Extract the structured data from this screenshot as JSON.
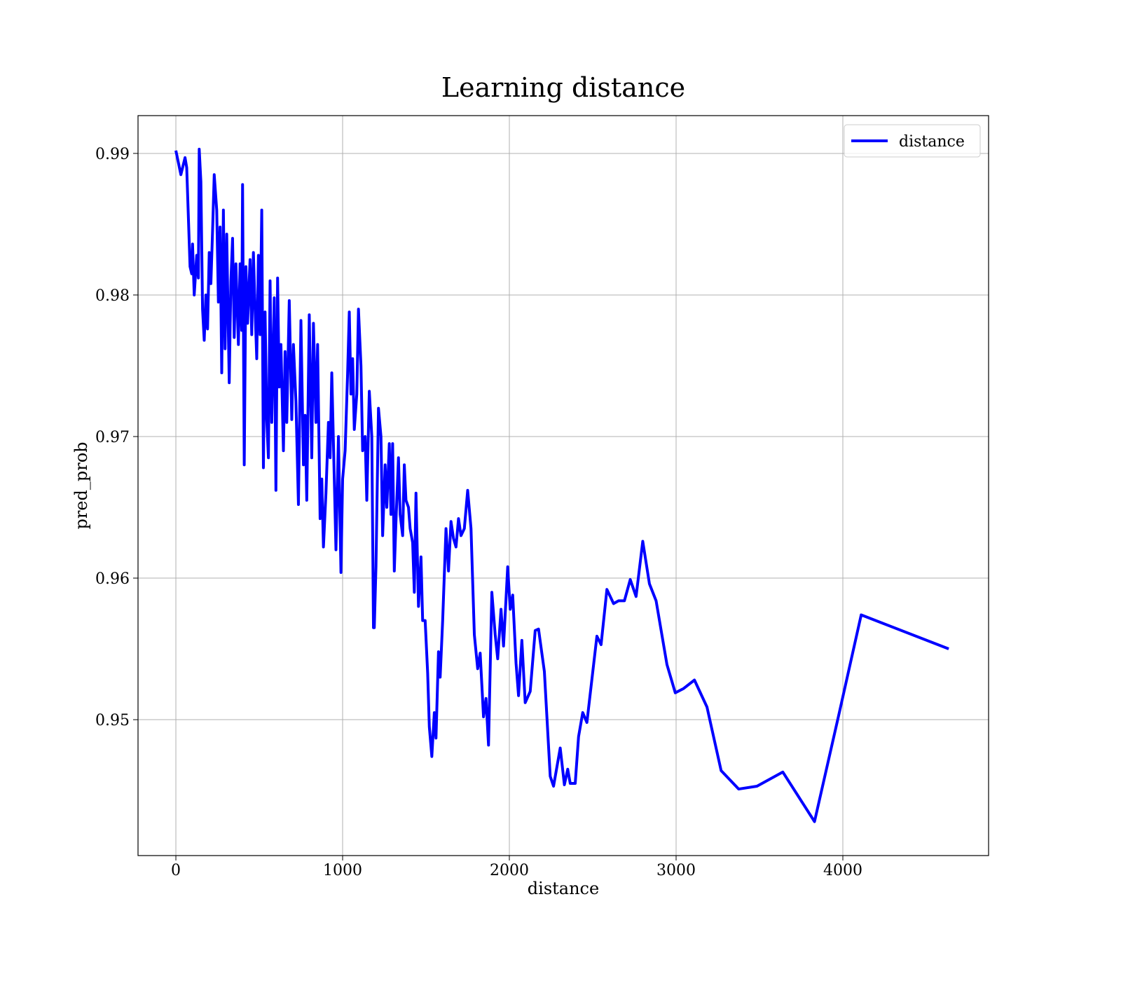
{
  "chart_data": {
    "type": "line",
    "title": "Learning distance",
    "xlabel": "distance",
    "ylabel": "pred_prob",
    "xlim": [
      -227,
      4874
    ],
    "ylim": [
      0.9404,
      0.99267
    ],
    "xticks": [
      0,
      1000,
      2000,
      3000,
      4000
    ],
    "yticks": [
      0.95,
      0.96,
      0.97,
      0.98,
      0.99
    ],
    "grid": true,
    "legend": "upper right",
    "x": [
      0,
      30,
      55,
      65,
      85,
      95,
      100,
      110,
      125,
      135,
      140,
      150,
      160,
      170,
      180,
      190,
      200,
      210,
      220,
      230,
      245,
      255,
      265,
      275,
      285,
      295,
      305,
      320,
      330,
      340,
      350,
      360,
      375,
      385,
      395,
      400,
      410,
      420,
      430,
      445,
      455,
      465,
      475,
      485,
      495,
      505,
      515,
      525,
      535,
      545,
      555,
      565,
      575,
      590,
      600,
      610,
      620,
      630,
      645,
      655,
      665,
      680,
      695,
      705,
      720,
      735,
      750,
      765,
      775,
      785,
      800,
      815,
      825,
      840,
      850,
      865,
      875,
      885,
      900,
      915,
      925,
      935,
      950,
      960,
      975,
      990,
      1000,
      1015,
      1030,
      1040,
      1050,
      1060,
      1070,
      1085,
      1095,
      1110,
      1120,
      1135,
      1145,
      1160,
      1175,
      1185,
      1190,
      1200,
      1215,
      1230,
      1240,
      1255,
      1265,
      1280,
      1290,
      1300,
      1310,
      1320,
      1335,
      1345,
      1360,
      1370,
      1380,
      1395,
      1405,
      1420,
      1430,
      1440,
      1455,
      1470,
      1480,
      1495,
      1510,
      1520,
      1535,
      1550,
      1560,
      1575,
      1585,
      1600,
      1620,
      1635,
      1650,
      1665,
      1680,
      1695,
      1710,
      1730,
      1750,
      1770,
      1790,
      1810,
      1825,
      1845,
      1860,
      1875,
      1895,
      1915,
      1930,
      1950,
      1965,
      1990,
      2005,
      2020,
      2040,
      2055,
      2075,
      2095,
      2125,
      2155,
      2175,
      2210,
      2245,
      2265,
      2305,
      2330,
      2350,
      2365,
      2395,
      2415,
      2440,
      2465,
      2525,
      2550,
      2585,
      2625,
      2655,
      2690,
      2725,
      2760,
      2800,
      2840,
      2880,
      2945,
      2995,
      3045,
      3110,
      3185,
      3270,
      3375,
      3485,
      3640,
      3830,
      3975,
      4110,
      4635
    ],
    "series": [
      {
        "name": "distance",
        "color": "#0000ff",
        "values": [
          0.9902,
          0.9885,
          0.9897,
          0.989,
          0.982,
          0.9815,
          0.9836,
          0.98,
          0.9828,
          0.9812,
          0.9903,
          0.988,
          0.979,
          0.9768,
          0.98,
          0.9776,
          0.983,
          0.9808,
          0.9845,
          0.9885,
          0.986,
          0.9795,
          0.9848,
          0.9745,
          0.986,
          0.9762,
          0.9843,
          0.9738,
          0.981,
          0.984,
          0.977,
          0.9822,
          0.9765,
          0.9822,
          0.9775,
          0.9878,
          0.968,
          0.982,
          0.978,
          0.9825,
          0.9772,
          0.983,
          0.979,
          0.9755,
          0.9828,
          0.9772,
          0.986,
          0.9678,
          0.9788,
          0.9712,
          0.9685,
          0.981,
          0.971,
          0.9798,
          0.9662,
          0.9812,
          0.9735,
          0.9765,
          0.969,
          0.976,
          0.971,
          0.9796,
          0.9712,
          0.9765,
          0.9725,
          0.9652,
          0.9782,
          0.968,
          0.9715,
          0.9655,
          0.9786,
          0.9685,
          0.978,
          0.971,
          0.9765,
          0.9642,
          0.967,
          0.9622,
          0.966,
          0.971,
          0.9685,
          0.9745,
          0.967,
          0.962,
          0.97,
          0.9604,
          0.967,
          0.969,
          0.9745,
          0.9788,
          0.973,
          0.9755,
          0.9705,
          0.973,
          0.979,
          0.975,
          0.969,
          0.97,
          0.9655,
          0.9732,
          0.97,
          0.9565,
          0.9565,
          0.9608,
          0.972,
          0.97,
          0.963,
          0.968,
          0.965,
          0.9695,
          0.9645,
          0.9695,
          0.9605,
          0.964,
          0.9685,
          0.9645,
          0.963,
          0.968,
          0.9655,
          0.965,
          0.9635,
          0.9625,
          0.959,
          0.966,
          0.958,
          0.9615,
          0.957,
          0.957,
          0.9533,
          0.9495,
          0.9474,
          0.9505,
          0.9487,
          0.9548,
          0.953,
          0.957,
          0.9635,
          0.9605,
          0.964,
          0.9628,
          0.9622,
          0.9642,
          0.963,
          0.9635,
          0.9662,
          0.9635,
          0.956,
          0.9536,
          0.9547,
          0.9502,
          0.9515,
          0.9482,
          0.959,
          0.956,
          0.9543,
          0.9578,
          0.9552,
          0.9608,
          0.9578,
          0.9588,
          0.954,
          0.9517,
          0.9556,
          0.9512,
          0.952,
          0.9563,
          0.9564,
          0.9534,
          0.946,
          0.9453,
          0.948,
          0.9454,
          0.9465,
          0.9455,
          0.9455,
          0.9488,
          0.9505,
          0.9498,
          0.9559,
          0.9553,
          0.9592,
          0.9582,
          0.9584,
          0.9584,
          0.9599,
          0.9587,
          0.9626,
          0.9596,
          0.9584,
          0.9539,
          0.9519,
          0.9522,
          0.9528,
          0.9509,
          0.9464,
          0.9451,
          0.9453,
          0.9463,
          0.9428,
          0.9503,
          0.9574,
          0.955
        ]
      }
    ]
  }
}
